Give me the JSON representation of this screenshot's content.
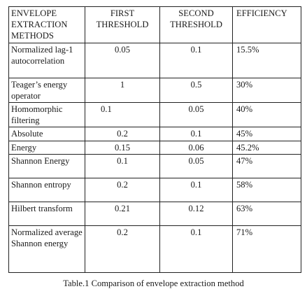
{
  "table": {
    "headers": {
      "method": "ENVELOPE EXTRACTION METHODS",
      "first": "FIRST THRESHOLD",
      "second": "SECOND THRESHOLD",
      "efficiency": "EFFICIENCY"
    },
    "rows": [
      {
        "method": "Normalized lag-1 autocorrelation",
        "first": "0.05",
        "second": "0.1",
        "efficiency": "15.5%"
      },
      {
        "method": "Teager’s energy operator",
        "first": "1",
        "second": "0.5",
        "efficiency": "30%"
      },
      {
        "method": "Homomorphic filtering",
        "first": "0.1",
        "second": "0.05",
        "efficiency": "40%"
      },
      {
        "method": "Absolute",
        "first": "0.2",
        "second": "0.1",
        "efficiency": "45%"
      },
      {
        "method": "Energy",
        "first": "0.15",
        "second": "0.06",
        "efficiency": "45.2%"
      },
      {
        "method": "Shannon Energy",
        "first": "0.1",
        "second": "0.05",
        "efficiency": "47%"
      },
      {
        "method": "Shannon entropy",
        "first": "0.2",
        "second": "0.1",
        "efficiency": "58%"
      },
      {
        "method": "Hilbert transform",
        "first": "0.21",
        "second": "0.12",
        "efficiency": "63%"
      },
      {
        "method": "Normalized average Shannon energy",
        "first": "0.2",
        "second": "0.1",
        "efficiency": "71%"
      }
    ]
  },
  "caption": "Table.1 Comparison of envelope extraction method"
}
